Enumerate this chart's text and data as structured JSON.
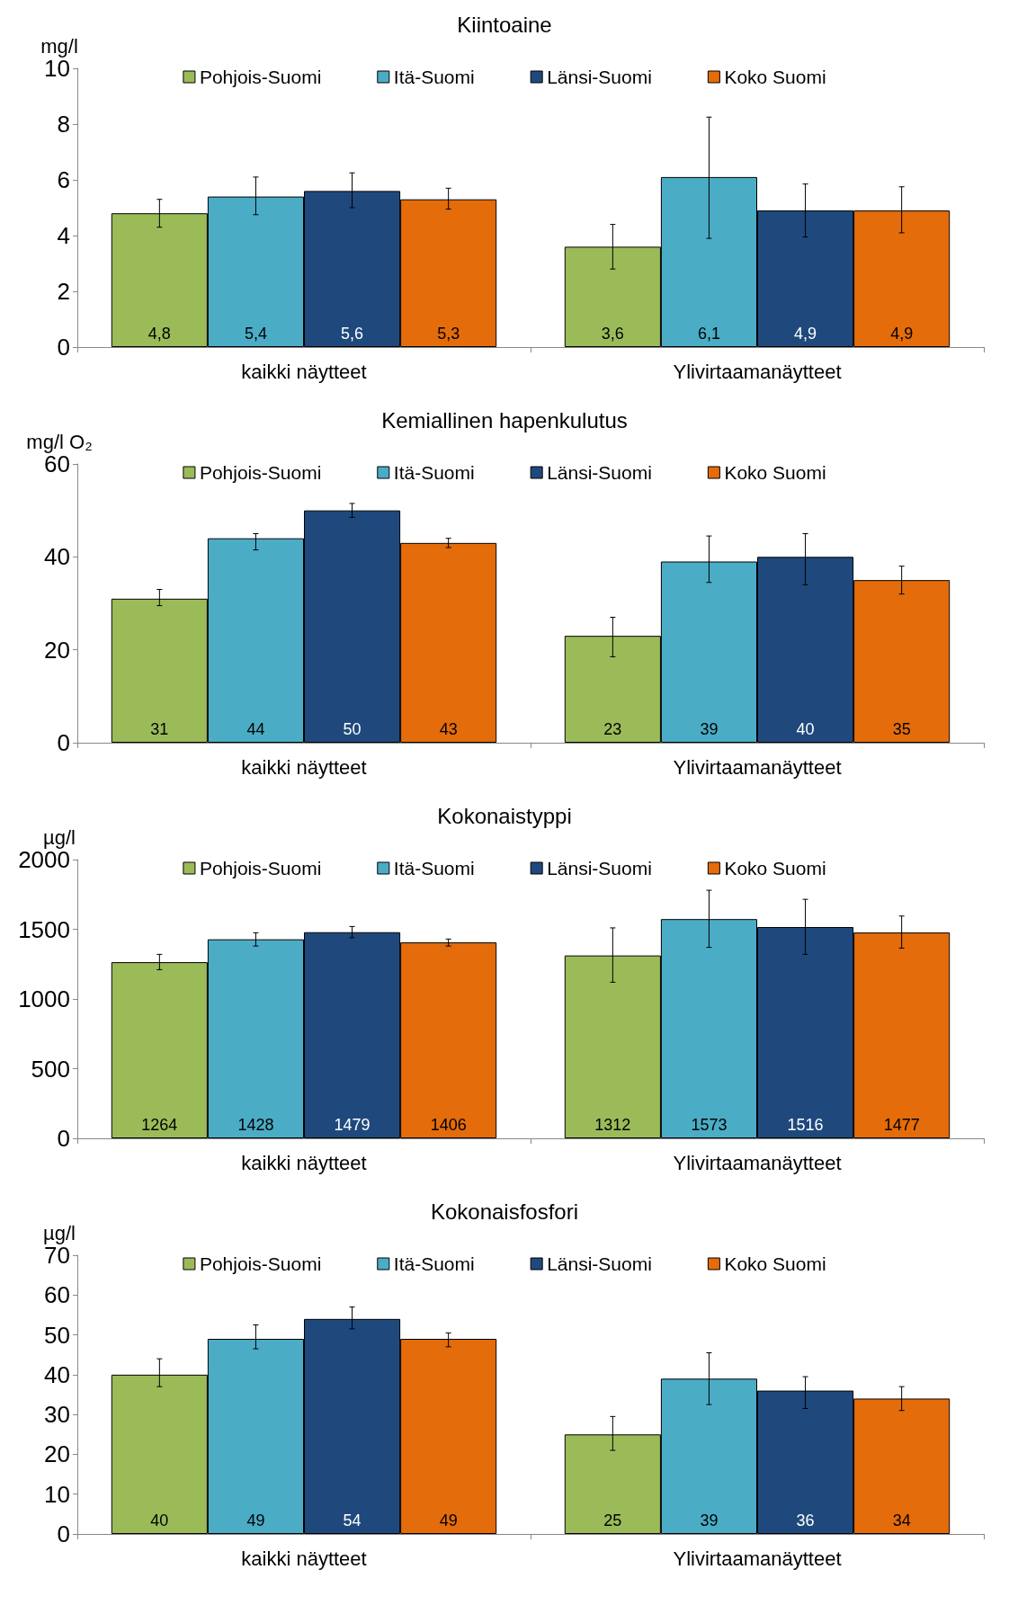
{
  "chart_data": [
    {
      "type": "bar",
      "title": "Kiintoaine",
      "ylabel": "mg/l",
      "categories": [
        "kaikki näytteet",
        "Ylivirtaamanäytteet"
      ],
      "ylim": [
        0,
        10
      ],
      "yticks": [
        0,
        2,
        4,
        6,
        8,
        10
      ],
      "grid": false,
      "legend": "top",
      "series": [
        {
          "name": "Pohjois-Suomi",
          "color": "#9bbb59",
          "values": [
            4.8,
            3.6
          ],
          "value_labels": [
            "4,8",
            "3,6"
          ],
          "errors": [
            [
              4.3,
              5.3
            ],
            [
              2.8,
              4.4
            ]
          ]
        },
        {
          "name": "Itä-Suomi",
          "color": "#4bacc6",
          "values": [
            5.4,
            6.1
          ],
          "value_labels": [
            "5,4",
            "6,1"
          ],
          "errors": [
            [
              4.75,
              6.1
            ],
            [
              3.9,
              8.25
            ]
          ]
        },
        {
          "name": "Länsi-Suomi",
          "color": "#1f497d",
          "values": [
            5.6,
            4.9
          ],
          "value_labels": [
            "5,6",
            "4,9"
          ],
          "errors": [
            [
              5.0,
              6.25
            ],
            [
              3.95,
              5.85
            ]
          ]
        },
        {
          "name": "Koko Suomi",
          "color": "#e46c0a",
          "values": [
            5.3,
            4.9
          ],
          "value_labels": [
            "5,3",
            "4,9"
          ],
          "errors": [
            [
              4.95,
              5.7
            ],
            [
              4.1,
              5.75
            ]
          ]
        }
      ]
    },
    {
      "type": "bar",
      "title": "Kemiallinen hapenkulutus",
      "ylabel": "mg/l O₂",
      "categories": [
        "kaikki näytteet",
        "Ylivirtaamanäytteet"
      ],
      "ylim": [
        0,
        60
      ],
      "yticks": [
        0,
        20,
        40,
        60
      ],
      "grid": false,
      "legend": "top",
      "data_labels": true,
      "series": [
        {
          "name": "Pohjois-Suomi",
          "color": "#9bbb59",
          "values": [
            31,
            23
          ],
          "errors": [
            [
              29.5,
              33
            ],
            [
              18.5,
              27
            ]
          ]
        },
        {
          "name": "Itä-Suomi",
          "color": "#4bacc6",
          "values": [
            44,
            39
          ],
          "errors": [
            [
              41.5,
              45
            ],
            [
              34.5,
              44.5
            ]
          ]
        },
        {
          "name": "Länsi-Suomi",
          "color": "#1f497d",
          "values": [
            50,
            40
          ],
          "errors": [
            [
              48.5,
              51.5
            ],
            [
              34,
              45
            ]
          ]
        },
        {
          "name": "Koko Suomi",
          "color": "#e46c0a",
          "values": [
            43,
            35
          ],
          "errors": [
            [
              42,
              44
            ],
            [
              32,
              38
            ]
          ]
        }
      ]
    },
    {
      "type": "bar",
      "title": "Kokonaistyppi",
      "ylabel": "µg/l",
      "categories": [
        "kaikki näytteet",
        "Ylivirtaamanäytteet"
      ],
      "ylim": [
        0,
        2000
      ],
      "yticks": [
        0,
        500,
        1000,
        1500,
        2000
      ],
      "grid": false,
      "legend": "top",
      "data_labels": true,
      "series": [
        {
          "name": "Pohjois-Suomi",
          "color": "#9bbb59",
          "values": [
            1264,
            1312
          ],
          "errors": [
            [
              1210,
              1320
            ],
            [
              1120,
              1510
            ]
          ]
        },
        {
          "name": "Itä-Suomi",
          "color": "#4bacc6",
          "values": [
            1428,
            1573
          ],
          "errors": [
            [
              1380,
              1475
            ],
            [
              1370,
              1780
            ]
          ]
        },
        {
          "name": "Länsi-Suomi",
          "color": "#1f497d",
          "values": [
            1479,
            1516
          ],
          "errors": [
            [
              1440,
              1520
            ],
            [
              1320,
              1715
            ]
          ]
        },
        {
          "name": "Koko Suomi",
          "color": "#e46c0a",
          "values": [
            1406,
            1477
          ],
          "errors": [
            [
              1380,
              1430
            ],
            [
              1365,
              1595
            ]
          ]
        }
      ]
    },
    {
      "type": "bar",
      "title": "Kokonaisfosfori",
      "ylabel": "µg/l",
      "categories": [
        "kaikki näytteet",
        "Ylivirtaamanäytteet"
      ],
      "ylim": [
        0,
        70
      ],
      "yticks": [
        0,
        10,
        20,
        30,
        40,
        50,
        60,
        70
      ],
      "grid": false,
      "legend": "top",
      "data_labels": true,
      "series": [
        {
          "name": "Pohjois-Suomi",
          "color": "#9bbb59",
          "values": [
            40,
            25
          ],
          "errors": [
            [
              37,
              44
            ],
            [
              21,
              29.5
            ]
          ]
        },
        {
          "name": "Itä-Suomi",
          "color": "#4bacc6",
          "values": [
            49,
            39
          ],
          "errors": [
            [
              46.5,
              52.5
            ],
            [
              32.5,
              45.5
            ]
          ]
        },
        {
          "name": "Länsi-Suomi",
          "color": "#1f497d",
          "values": [
            54,
            36
          ],
          "errors": [
            [
              51.5,
              57
            ],
            [
              31.5,
              39.5
            ]
          ]
        },
        {
          "name": "Koko Suomi",
          "color": "#e46c0a",
          "values": [
            49,
            34
          ],
          "errors": [
            [
              47,
              50.5
            ],
            [
              31,
              37
            ]
          ]
        }
      ]
    }
  ]
}
